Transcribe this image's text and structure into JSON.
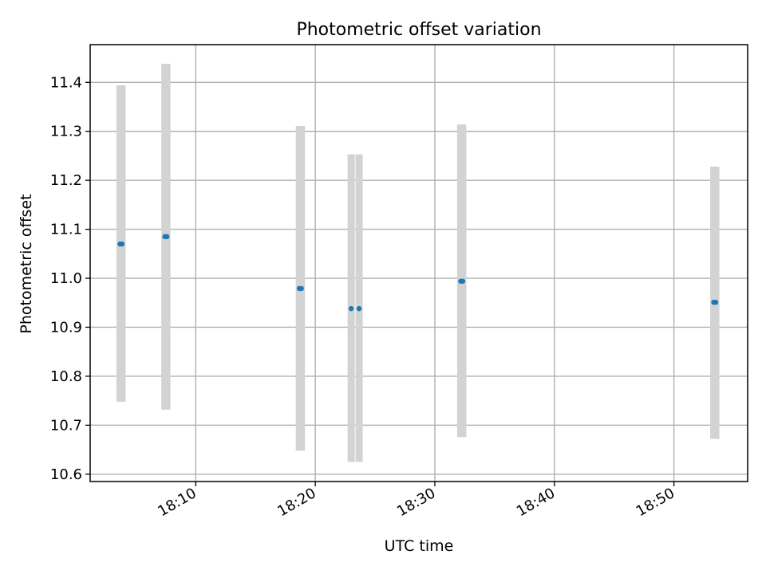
{
  "chart_data": {
    "type": "scatter",
    "title": "Photometric offset variation",
    "xlabel": "UTC time",
    "ylabel": "Photometric offset",
    "x_axis_type": "time",
    "xlim": [
      "18:01:10",
      "18:56:10"
    ],
    "ylim": [
      10.585,
      11.477
    ],
    "x_ticks": [
      "18:10",
      "18:20",
      "18:30",
      "18:40",
      "18:50"
    ],
    "y_ticks": [
      10.6,
      10.7,
      10.8,
      10.9,
      11.0,
      11.1,
      11.2,
      11.3,
      11.4
    ],
    "grid": true,
    "legend": "none",
    "series": [
      {
        "marker_color": "#1f77b4",
        "errorbar_color": "#d3d3d3",
        "points": [
          {
            "x": "18:03:40",
            "y": 11.07,
            "y_low": 10.748,
            "y_high": 11.394
          },
          {
            "x": "18:03:50",
            "y": 11.07,
            "y_low": 10.748,
            "y_high": 11.394
          },
          {
            "x": "18:07:25",
            "y": 11.085,
            "y_low": 10.732,
            "y_high": 11.438
          },
          {
            "x": "18:07:35",
            "y": 11.085,
            "y_low": 10.732,
            "y_high": 11.438
          },
          {
            "x": "18:18:40",
            "y": 10.979,
            "y_low": 10.648,
            "y_high": 11.311
          },
          {
            "x": "18:18:50",
            "y": 10.979,
            "y_low": 10.648,
            "y_high": 11.311
          },
          {
            "x": "18:23:00",
            "y": 10.938,
            "y_low": 10.625,
            "y_high": 11.253
          },
          {
            "x": "18:23:40",
            "y": 10.938,
            "y_low": 10.625,
            "y_high": 11.253
          },
          {
            "x": "18:32:10",
            "y": 10.994,
            "y_low": 10.676,
            "y_high": 11.314
          },
          {
            "x": "18:32:20",
            "y": 10.994,
            "y_low": 10.676,
            "y_high": 11.314
          },
          {
            "x": "18:53:20",
            "y": 10.951,
            "y_low": 10.672,
            "y_high": 11.228
          },
          {
            "x": "18:53:30",
            "y": 10.951,
            "y_low": 10.672,
            "y_high": 11.228
          }
        ]
      }
    ]
  }
}
